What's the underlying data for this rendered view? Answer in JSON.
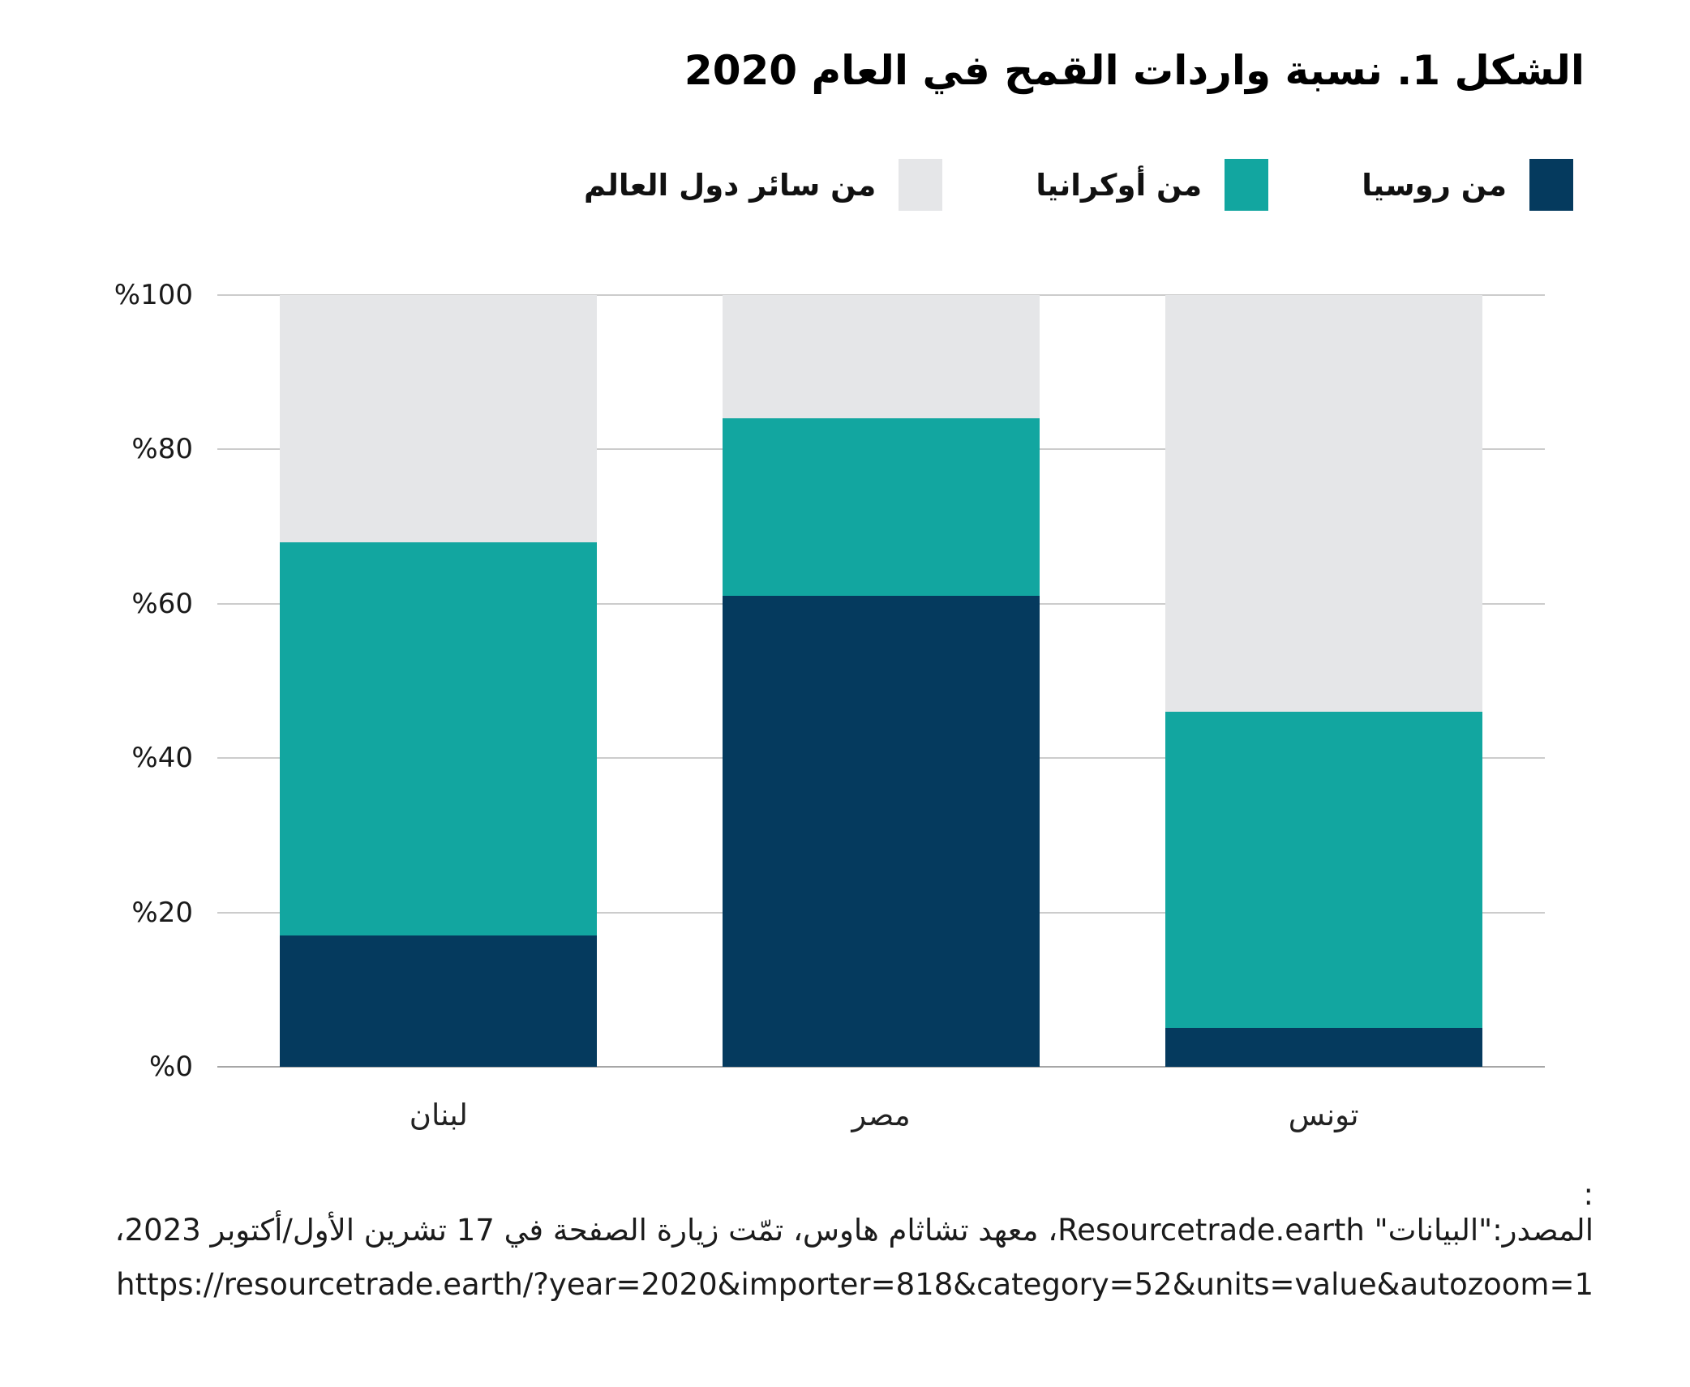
{
  "title": "الشكل 1. نسبة واردات القمح في العام 2020",
  "legend": [
    {
      "label": "من روسيا",
      "color": "#053A5E"
    },
    {
      "label": "من أوكرانيا",
      "color": "#12A6A0"
    },
    {
      "label": "من سائر دول العالم",
      "color": "#E5E6E8"
    }
  ],
  "chart_data": {
    "type": "bar",
    "stacked": true,
    "title": "الشكل 1. نسبة واردات القمح في العام 2020",
    "categories": [
      "لبنان",
      "مصر",
      "تونس"
    ],
    "series": [
      {
        "name": "من روسيا",
        "color": "#053A5E",
        "values": [
          17,
          61,
          5
        ]
      },
      {
        "name": "من أوكرانيا",
        "color": "#12A6A0",
        "values": [
          51,
          23,
          41
        ]
      },
      {
        "name": "من سائر دول العالم",
        "color": "#E5E6E8",
        "values": [
          32,
          16,
          54
        ]
      }
    ],
    "xlabel": "",
    "ylabel": "",
    "ylim": [
      0,
      100
    ],
    "yticks": [
      "%0",
      "%20",
      "%40",
      "%60",
      "%80",
      "%100"
    ],
    "grid": true,
    "legend_position": "top-right"
  },
  "source": {
    "colon": ":",
    "line1": "المصدر:\"البيانات\" Resourcetrade.earth، معهد تشاثام هاوس، تمّت زيارة الصفحة في 17 تشرين الأول/أكتوبر 2023،",
    "url": "https://resourcetrade.earth/?year=2020&importer=818&category=52&units=value&autozoom=1"
  }
}
